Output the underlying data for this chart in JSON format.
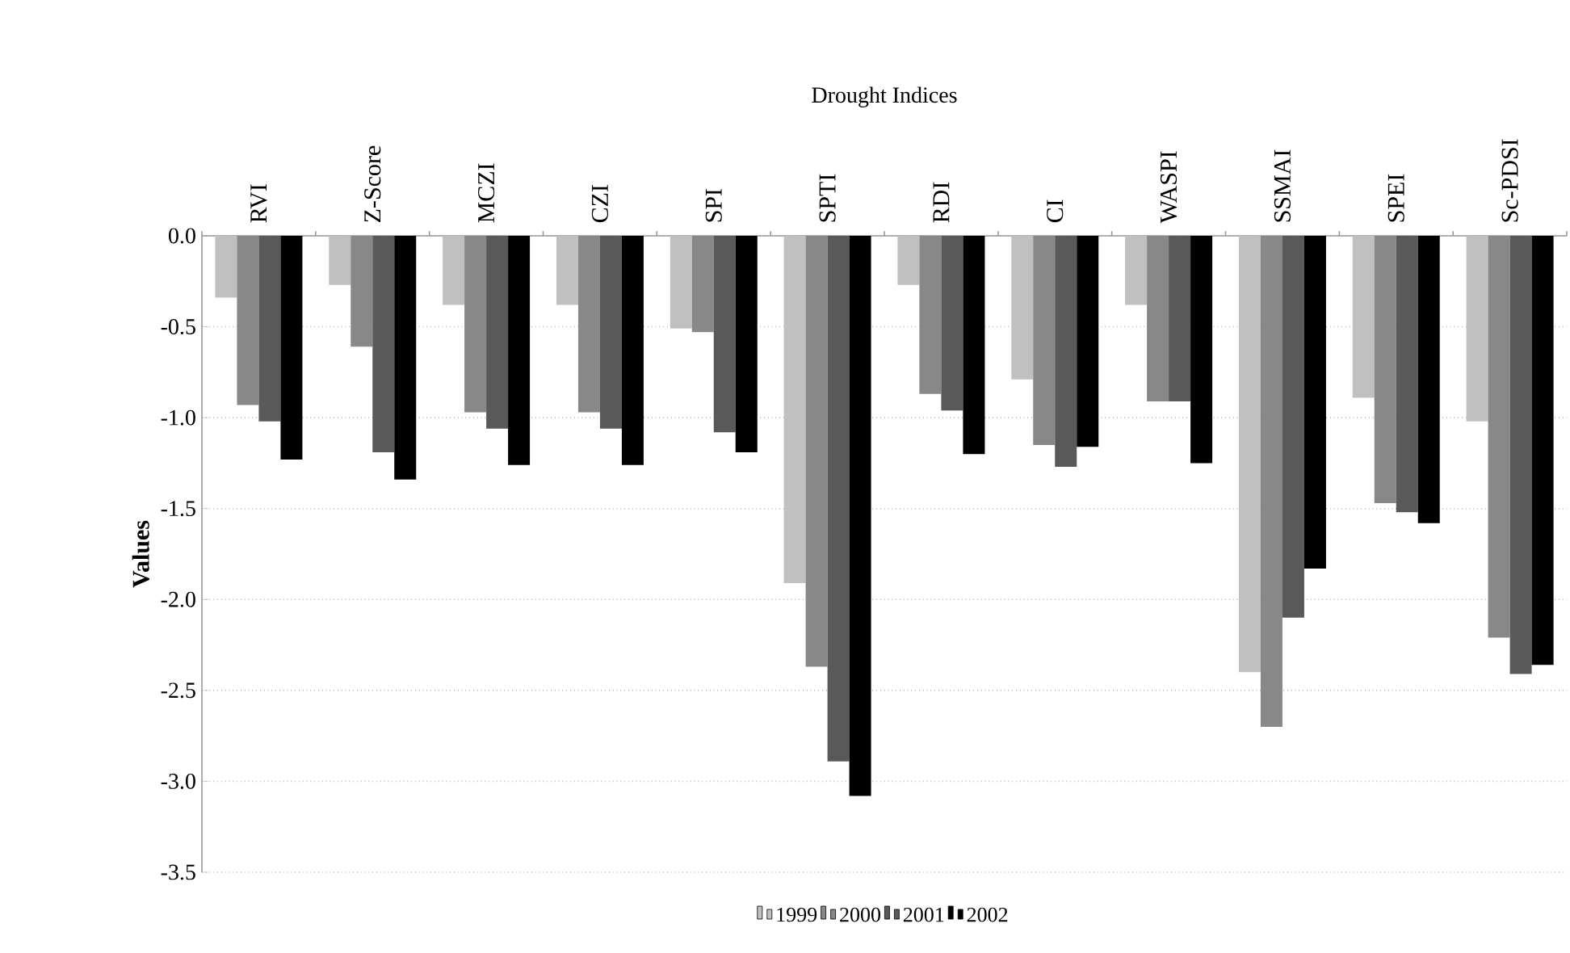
{
  "chart_data": {
    "type": "bar",
    "xlabel": "Drought Indices",
    "ylabel": "Values",
    "categories": [
      "RVI",
      "Z-Score",
      "MCZI",
      "CZI",
      "SPI",
      "SPTI",
      "RDI",
      "CI",
      "WASPI",
      "SSMAI",
      "SPEI",
      "Sc-PDSI"
    ],
    "series": [
      {
        "name": "1999",
        "color": "#c0c0c0",
        "values": [
          -0.34,
          -0.27,
          -0.38,
          -0.38,
          -0.51,
          -1.91,
          -0.27,
          -0.79,
          -0.38,
          -2.4,
          -0.89,
          -1.02
        ]
      },
      {
        "name": "2000",
        "color": "#888888",
        "values": [
          -0.93,
          -0.61,
          -0.97,
          -0.97,
          -0.53,
          -2.37,
          -0.87,
          -1.15,
          -0.91,
          -2.7,
          -1.47,
          -2.21
        ]
      },
      {
        "name": "2001",
        "color": "#595959",
        "values": [
          -1.02,
          -1.19,
          -1.06,
          -1.06,
          -1.08,
          -2.89,
          -0.96,
          -1.27,
          -0.91,
          -2.1,
          -1.52,
          -2.41
        ]
      },
      {
        "name": "2002",
        "color": "#000000",
        "values": [
          -1.23,
          -1.34,
          -1.26,
          -1.26,
          -1.19,
          -3.08,
          -1.2,
          -1.16,
          -1.25,
          -1.83,
          -1.58,
          -2.36
        ]
      }
    ],
    "ylim": [
      -3.5,
      0
    ],
    "yticks": [
      {
        "value": 0,
        "label": "0.0"
      },
      {
        "value": -0.5,
        "label": "-0.5"
      },
      {
        "value": -1,
        "label": "-1.0"
      },
      {
        "value": -1.5,
        "label": "-1.5"
      },
      {
        "value": -2,
        "label": "-2.0"
      },
      {
        "value": -2.5,
        "label": "-2.5"
      },
      {
        "value": -3,
        "label": "-3.0"
      },
      {
        "value": -3.5,
        "label": "-3.5"
      }
    ],
    "grid": "y",
    "legend": "bottom"
  }
}
